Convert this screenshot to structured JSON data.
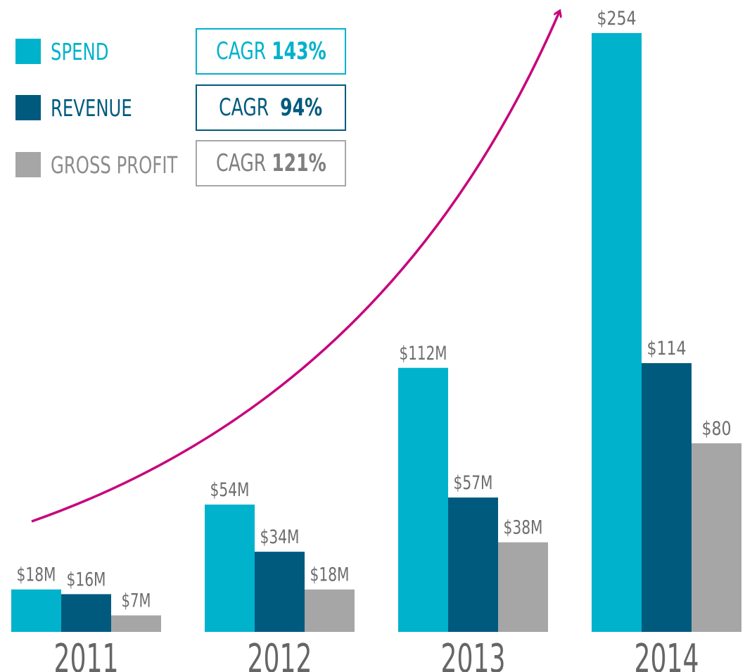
{
  "colors": {
    "spend": "#00B2CC",
    "revenue": "#005A7E",
    "gross_profit": "#A6A6A6",
    "arrow": "#C7057C",
    "year_text": "#666666",
    "value_text": "#6D6D6D"
  },
  "legend": [
    {
      "label": "SPEND",
      "cagr_prefix": "CAGR",
      "cagr_value": "143%",
      "color_key": "spend"
    },
    {
      "label": "REVENUE",
      "cagr_prefix": "CAGR",
      "cagr_value": "94%",
      "color_key": "revenue"
    },
    {
      "label": "GROSS PROFIT",
      "cagr_prefix": "CAGR",
      "cagr_value": "121%",
      "color_key": "gross_profit"
    }
  ],
  "chart_data": {
    "type": "bar",
    "categories": [
      "2011",
      "2012",
      "2013",
      "2014"
    ],
    "series": [
      {
        "name": "SPEND",
        "values": [
          18,
          54,
          112,
          254
        ],
        "labels": [
          "$18M",
          "$54M",
          "$112M",
          "$254"
        ]
      },
      {
        "name": "REVENUE",
        "values": [
          16,
          34,
          57,
          114
        ],
        "labels": [
          "$16M",
          "$34M",
          "$57M",
          "$114"
        ]
      },
      {
        "name": "GROSS PROFIT",
        "values": [
          7,
          18,
          38,
          80
        ],
        "labels": [
          "$7M",
          "$18M",
          "$38M",
          "$80"
        ]
      }
    ],
    "ylim": [
      0,
      254
    ],
    "grid": false,
    "legend_position": "top-left"
  }
}
